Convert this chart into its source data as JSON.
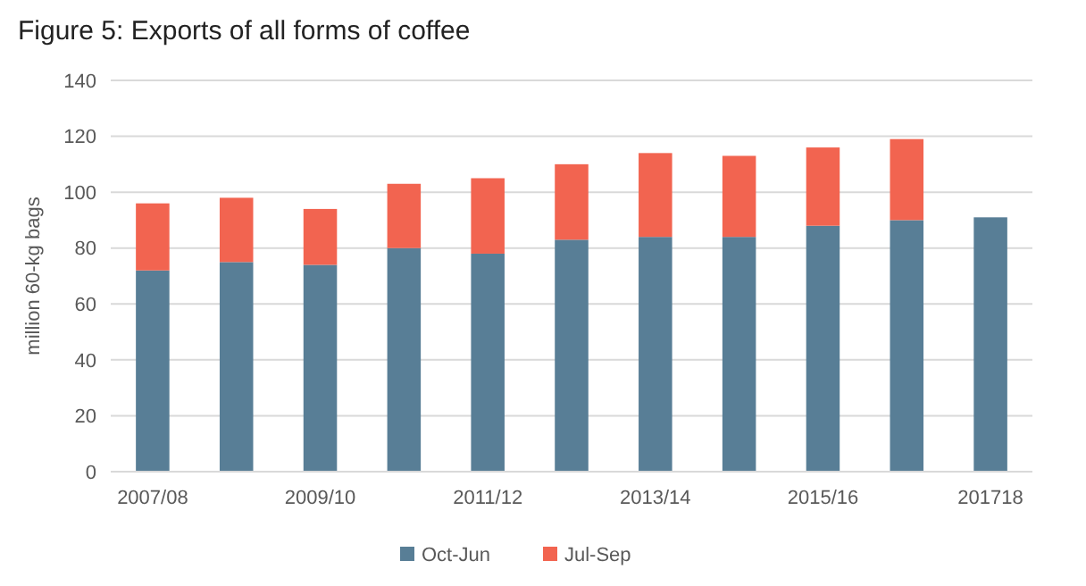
{
  "chart_data": {
    "type": "bar",
    "title": "Figure 5: Exports of all forms of coffee",
    "ylabel": "million 60-kg bags",
    "categories": [
      "2007/08",
      null,
      "2009/10",
      null,
      "2011/12",
      null,
      "2013/14",
      null,
      "2015/16",
      null,
      "201718"
    ],
    "stacked": true,
    "series": [
      {
        "name": "Oct-Jun",
        "color": "#587e96",
        "values": [
          72,
          75,
          74,
          80,
          78,
          83,
          84,
          84,
          88,
          90,
          91
        ]
      },
      {
        "name": "Jul-Sep",
        "color": "#f26450",
        "values": [
          24,
          23,
          20,
          23,
          27,
          27,
          30,
          29,
          28,
          29,
          null
        ]
      }
    ],
    "ylim": [
      0,
      140
    ],
    "yticks": [
      0,
      20,
      40,
      60,
      80,
      100,
      120,
      140
    ],
    "grid": "y",
    "legend": "bottom"
  }
}
